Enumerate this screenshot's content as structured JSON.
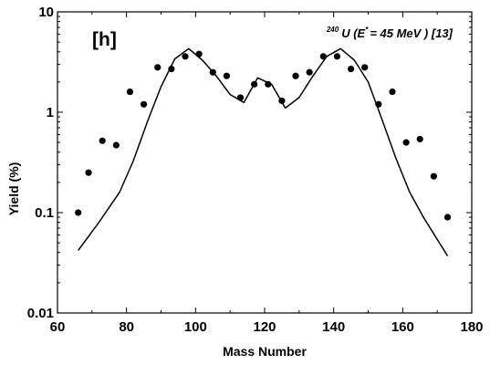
{
  "chart_data": {
    "type": "scatter",
    "panel_label": "[h]",
    "annotation": {
      "mass_superscript": "240",
      "element": "U (E",
      "excitation_superscript": "*",
      "energy": "= 45 MeV ) [13]"
    },
    "xlabel": "Mass Number",
    "ylabel": "Yield (%)",
    "xlim": [
      60,
      180
    ],
    "ylim": [
      0.01,
      10
    ],
    "yscale": "log",
    "grid": false,
    "legend": "none",
    "x_ticks": [
      {
        "value": 60,
        "label": "60"
      },
      {
        "value": 80,
        "label": "80"
      },
      {
        "value": 100,
        "label": "100"
      },
      {
        "value": 120,
        "label": "120"
      },
      {
        "value": 140,
        "label": "140"
      },
      {
        "value": 160,
        "label": "160"
      },
      {
        "value": 180,
        "label": "180"
      }
    ],
    "y_ticks": [
      {
        "value": 0.01,
        "label": "0.01"
      },
      {
        "value": 0.1,
        "label": "0.1"
      },
      {
        "value": 1,
        "label": "1"
      },
      {
        "value": 10,
        "label": "10"
      }
    ],
    "series": [
      {
        "kind": "points",
        "color": "#000000",
        "x": [
          66,
          69,
          73,
          77,
          81,
          85,
          89,
          93,
          97,
          101,
          105,
          109,
          113,
          117,
          121,
          125,
          129,
          133,
          137,
          141,
          145,
          149,
          153,
          157,
          161,
          165,
          169,
          173
        ],
        "y": [
          0.1,
          0.25,
          0.52,
          0.47,
          1.6,
          1.2,
          2.8,
          2.7,
          3.6,
          3.8,
          2.5,
          2.3,
          1.4,
          1.9,
          1.9,
          1.3,
          2.3,
          2.5,
          3.6,
          3.6,
          2.7,
          2.8,
          1.2,
          1.6,
          0.5,
          0.54,
          0.23,
          0.09
        ]
      },
      {
        "kind": "line",
        "color": "#000000",
        "x": [
          66,
          72,
          78,
          82,
          86,
          90,
          94,
          98,
          102,
          106,
          110,
          114,
          118,
          122,
          126,
          130,
          134,
          138,
          142,
          146,
          150,
          154,
          158,
          162,
          166,
          173
        ],
        "y": [
          0.042,
          0.08,
          0.16,
          0.33,
          0.8,
          1.8,
          3.4,
          4.3,
          3.3,
          2.3,
          1.5,
          1.25,
          2.2,
          1.9,
          1.1,
          1.4,
          2.3,
          3.6,
          4.3,
          3.3,
          2.0,
          0.85,
          0.35,
          0.16,
          0.09,
          0.037
        ]
      }
    ]
  }
}
